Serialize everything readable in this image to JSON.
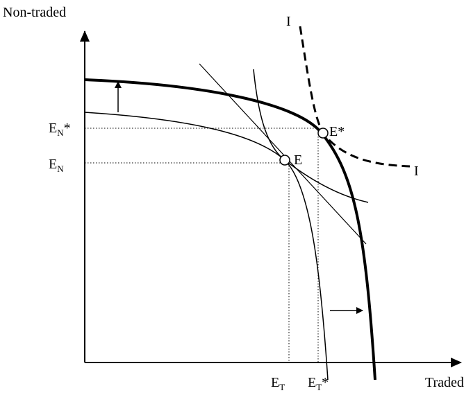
{
  "axes": {
    "y_label": "Non-traded",
    "x_label": "Traded"
  },
  "labels": {
    "en_star": {
      "main": "E",
      "sub": "N",
      "suffix": "*"
    },
    "en": {
      "main": "E",
      "sub": "N"
    },
    "et": {
      "main": "E",
      "sub": "T"
    },
    "et_star": {
      "main": "E",
      "sub": "T",
      "suffix": "*"
    },
    "e": {
      "main": "E"
    },
    "e_star": {
      "main": "E*"
    },
    "i_top": {
      "main": "I"
    },
    "i_right": {
      "main": "I"
    }
  }
}
